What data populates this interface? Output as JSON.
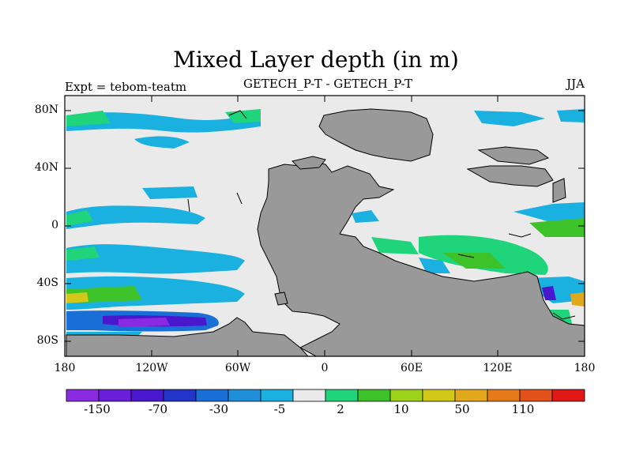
{
  "title": "Mixed Layer depth (in m)",
  "subtitle_left": "Expt = tebom-teatm",
  "subtitle_center": "GETECH_P-T - GETECH_P-T",
  "subtitle_right": "JJA",
  "lat_labels": [
    "80N",
    "40N",
    "0",
    "40S",
    "80S"
  ],
  "lon_labels": [
    "180",
    "120W",
    "60W",
    "0",
    "60E",
    "120E",
    "180"
  ],
  "colorbar": {
    "labels": [
      "-150",
      "-70",
      "-30",
      "-5",
      "2",
      "10",
      "50",
      "110"
    ],
    "colors": [
      "#8a2be2",
      "#6a1fd8",
      "#4a18cc",
      "#2235c8",
      "#1a6fd6",
      "#1e8fd8",
      "#1ab0e0",
      "#eaeaea",
      "#20d47c",
      "#3ec22a",
      "#9ed21a",
      "#d2c81a",
      "#e0a81a",
      "#e47a1a",
      "#e2521a",
      "#e01818"
    ]
  },
  "map_colors": {
    "land": "#999999",
    "ocean_neutral": "#eaeaea",
    "coast": "#000000"
  }
}
